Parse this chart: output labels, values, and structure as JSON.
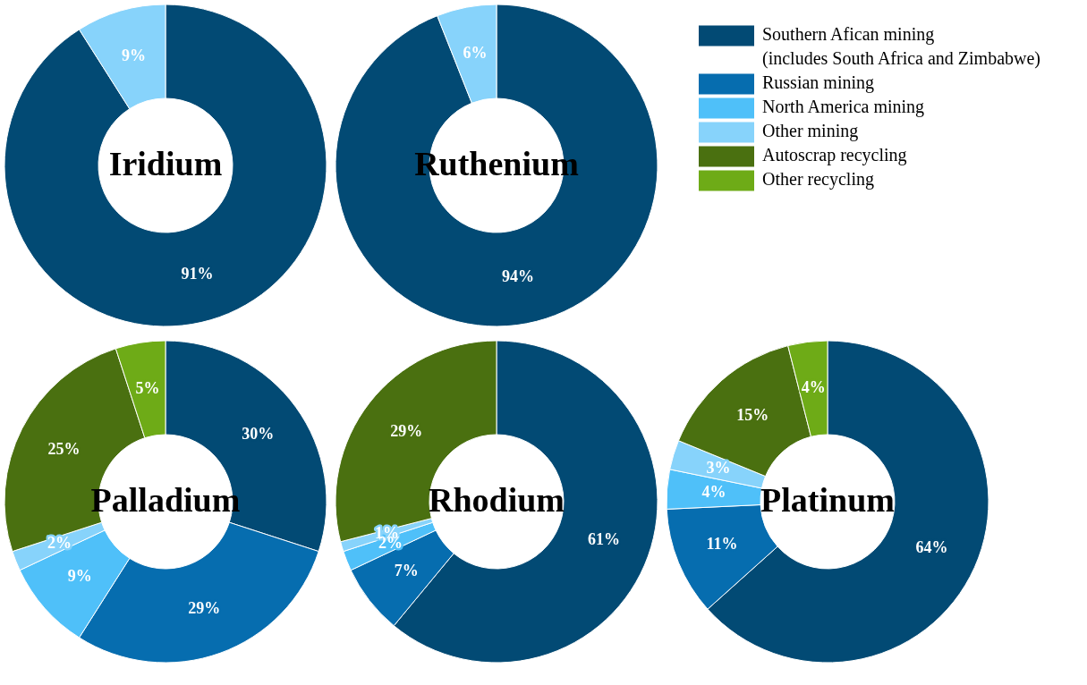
{
  "chart_data": [
    {
      "type": "donut",
      "title": "Iridium",
      "categories": [
        null,
        null
      ],
      "values": [
        91,
        9
      ],
      "colors": [
        "#024a74",
        "#87d3fb"
      ],
      "value_labels": [
        "91%",
        "9%"
      ]
    },
    {
      "type": "donut",
      "title": "Ruthenium",
      "categories": [
        null,
        null
      ],
      "values": [
        94,
        6
      ],
      "colors": [
        "#024a74",
        "#87d3fb"
      ],
      "value_labels": [
        "94%",
        "6%"
      ]
    },
    {
      "type": "donut",
      "title": "Palladium",
      "categories": [
        "Southern Afican mining (includes South Africa and Zimbabwe)",
        "Russian mining",
        "North America mining",
        "Other mining",
        "Autoscrap recycling",
        "Other recycling"
      ],
      "values": [
        30,
        29,
        9,
        2,
        25,
        5
      ],
      "colors": [
        "#024a74",
        "#066daf",
        "#4fc0f9",
        "#87d3fb",
        "#4a7010",
        "#6eab17"
      ],
      "value_labels": [
        "30%",
        "29%",
        "9%",
        "2%",
        "25%",
        "5%"
      ],
      "legend": "top right"
    },
    {
      "type": "donut",
      "title": "Rhodium",
      "categories": [
        null,
        null,
        null,
        null,
        null
      ],
      "values": [
        61,
        7,
        2,
        1,
        29
      ],
      "colors": [
        "#024a74",
        "#066daf",
        "#4fc0f9",
        "#87d3fb",
        "#4a7010"
      ],
      "value_labels": [
        "61%",
        "7%",
        "2%",
        "1%",
        "29%"
      ]
    },
    {
      "type": "donut",
      "title": "Platinum",
      "categories": [
        null,
        null,
        null,
        null,
        null,
        null
      ],
      "values": [
        64,
        11,
        4,
        3,
        15,
        4
      ],
      "colors": [
        "#024a74",
        "#066daf",
        "#4fc0f9",
        "#87d3fb",
        "#4a7010",
        "#6eab17"
      ],
      "value_labels": [
        "64%",
        "11%",
        "4%",
        "3%",
        "15%",
        "4%"
      ]
    }
  ]
}
